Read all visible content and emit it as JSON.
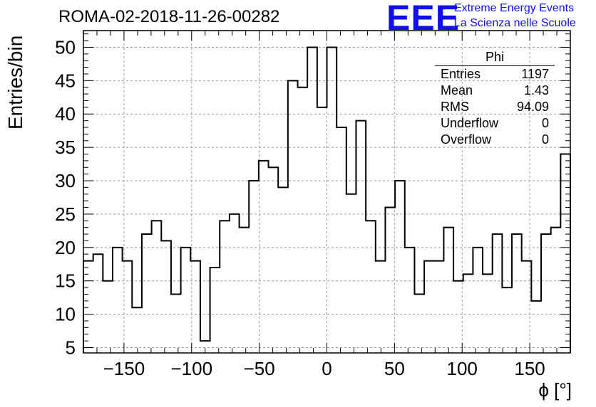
{
  "header": {
    "title": "ROMA-02-2018-11-26-00282",
    "logo": "EEE",
    "org_line1": "Extreme Energy Events",
    "org_line2": "La Scienza nelle Scuole"
  },
  "colors": {
    "brand": "#1010e8",
    "histogram": "#000000",
    "grid": "#9a9a9a"
  },
  "stats_box": {
    "title": "Phi",
    "rows": [
      {
        "label": "Entries",
        "value": "1197"
      },
      {
        "label": "Mean",
        "value": "1.43"
      },
      {
        "label": "RMS",
        "value": "94.09"
      },
      {
        "label": "Underflow",
        "value": "0"
      },
      {
        "label": "Overflow",
        "value": "0"
      }
    ]
  },
  "chart_data": {
    "type": "histogram",
    "title": "ROMA-02-2018-11-26-00282",
    "xlabel": "ϕ [°]",
    "ylabel": "Entries/bin",
    "xlim": [
      -180,
      180
    ],
    "ylim": [
      4.2,
      52.5
    ],
    "bin_width": 7.2,
    "grid": true,
    "x_ticks": [
      -150,
      -100,
      -50,
      0,
      50,
      100,
      150
    ],
    "x_tick_labels": [
      "−150",
      "−100",
      "−50",
      "0",
      "50",
      "100",
      "150"
    ],
    "y_ticks": [
      5,
      10,
      15,
      20,
      25,
      30,
      35,
      40,
      45,
      50
    ],
    "y_tick_labels": [
      "5",
      "10",
      "15",
      "20",
      "25",
      "30",
      "35",
      "40",
      "45",
      "50"
    ],
    "bin_edges_start": -180,
    "values": [
      18,
      19,
      15,
      20,
      18,
      11,
      22,
      24,
      21,
      13,
      20,
      18,
      6,
      17,
      24,
      25,
      23,
      30,
      33,
      32,
      29,
      45,
      44,
      50,
      41,
      50,
      38,
      28,
      39,
      24,
      18,
      26,
      30,
      20,
      13,
      18,
      18,
      23,
      15,
      16,
      20,
      16,
      22,
      14,
      22,
      18,
      12,
      22,
      23,
      34
    ]
  }
}
